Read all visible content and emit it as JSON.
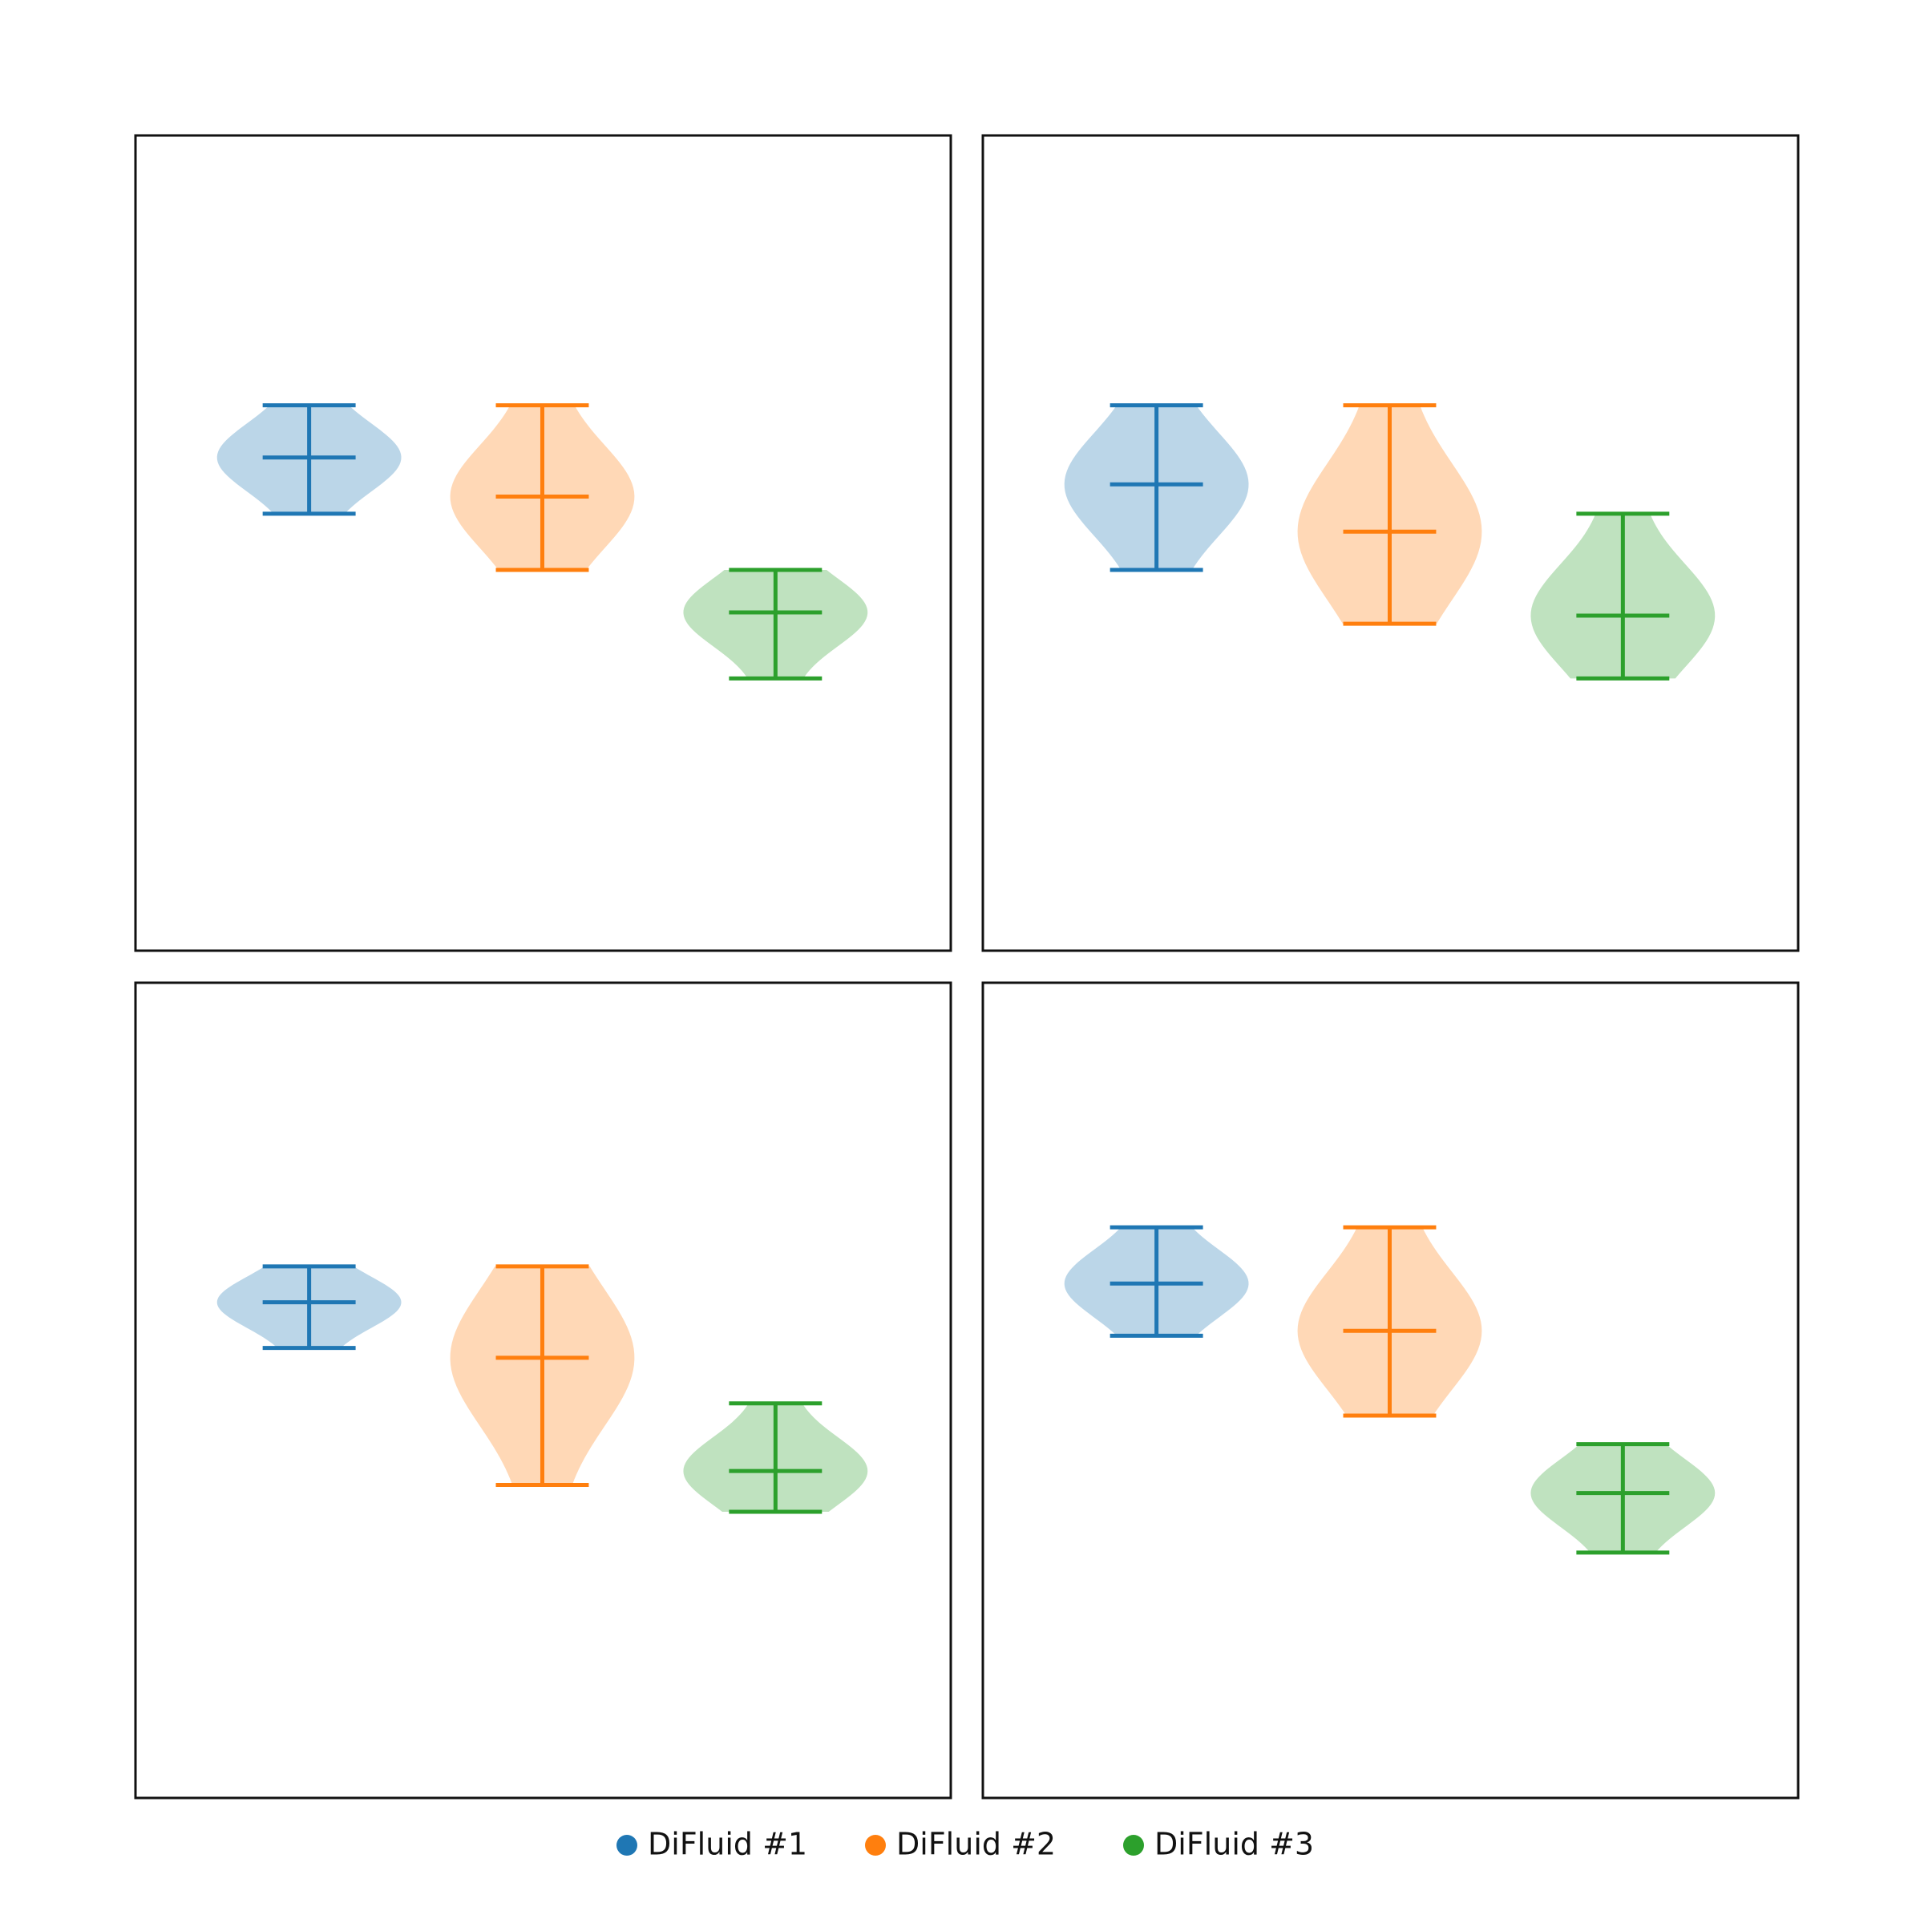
{
  "chart_data": [
    {
      "type": "violin",
      "ylim": [
        0,
        100
      ],
      "series": [
        {
          "name": "DiFluid #1",
          "color": "#1f77b4",
          "min": 53.6,
          "center": 60.5,
          "max": 66.9
        },
        {
          "name": "DiFluid #2",
          "color": "#ff7f0e",
          "min": 46.7,
          "center": 55.7,
          "max": 66.9
        },
        {
          "name": "DiFluid #3",
          "color": "#2ca02c",
          "min": 33.4,
          "center": 41.5,
          "max": 46.7
        }
      ]
    },
    {
      "type": "violin",
      "ylim": [
        0,
        100
      ],
      "series": [
        {
          "name": "DiFluid #1",
          "color": "#1f77b4",
          "min": 46.7,
          "center": 57.2,
          "max": 66.9
        },
        {
          "name": "DiFluid #2",
          "color": "#ff7f0e",
          "min": 40.1,
          "center": 51.4,
          "max": 66.9
        },
        {
          "name": "DiFluid #3",
          "color": "#2ca02c",
          "min": 33.4,
          "center": 41.1,
          "max": 53.6
        }
      ]
    },
    {
      "type": "violin",
      "ylim": [
        0,
        100
      ],
      "series": [
        {
          "name": "DiFluid #1",
          "color": "#1f77b4",
          "min": 55.2,
          "center": 60.8,
          "max": 65.2
        },
        {
          "name": "DiFluid #2",
          "color": "#ff7f0e",
          "min": 38.4,
          "center": 54.0,
          "max": 65.2
        },
        {
          "name": "DiFluid #3",
          "color": "#2ca02c",
          "min": 35.1,
          "center": 40.1,
          "max": 48.4
        }
      ]
    },
    {
      "type": "violin",
      "ylim": [
        0,
        100
      ],
      "series": [
        {
          "name": "DiFluid #1",
          "color": "#1f77b4",
          "min": 56.7,
          "center": 63.1,
          "max": 70.0
        },
        {
          "name": "DiFluid #2",
          "color": "#ff7f0e",
          "min": 46.9,
          "center": 57.3,
          "max": 70.0
        },
        {
          "name": "DiFluid #3",
          "color": "#2ca02c",
          "min": 30.1,
          "center": 37.4,
          "max": 43.4
        }
      ]
    }
  ]
}
